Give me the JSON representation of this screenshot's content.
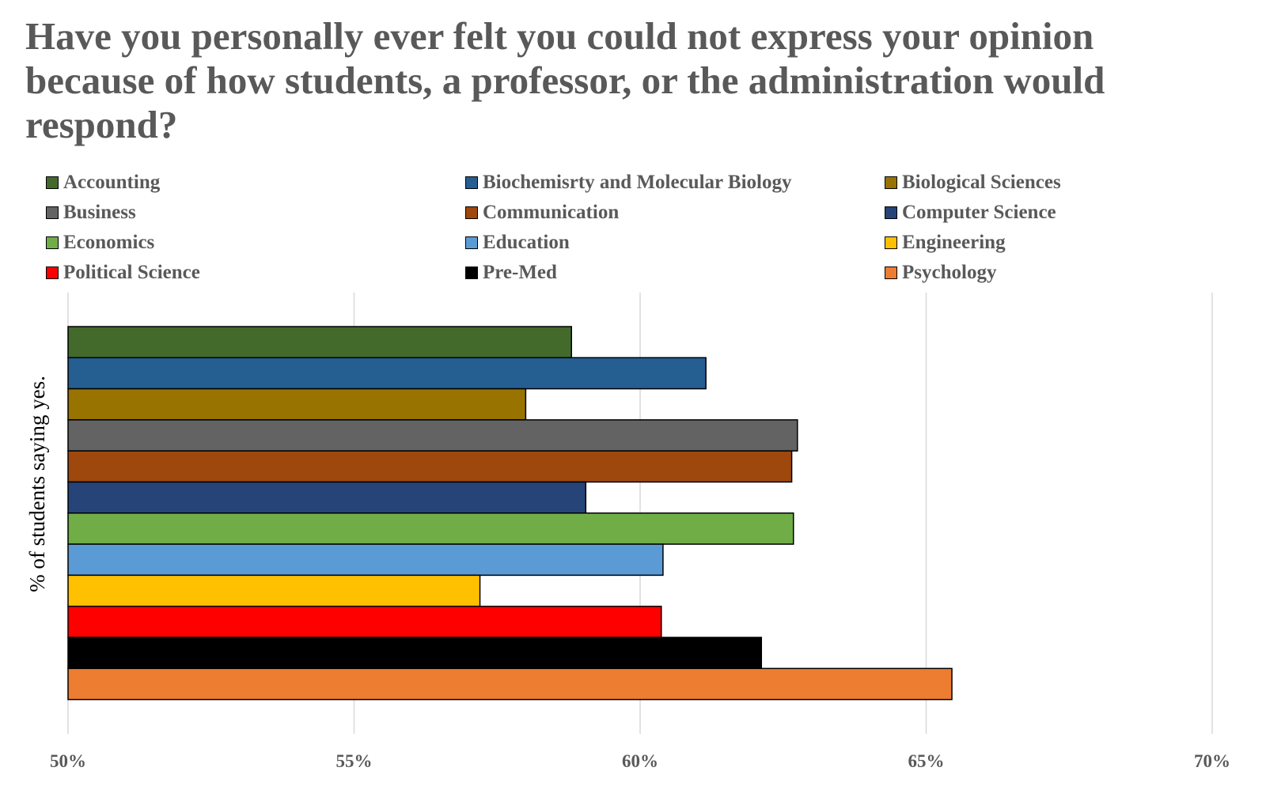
{
  "chart_data": {
    "type": "bar",
    "orientation": "horizontal",
    "title": "Have you personally ever felt you could not express your opinion because of  how students, a professor, or the administration would respond?",
    "ylabel": "% of students saying yes.",
    "xlabel": "",
    "xlim": [
      50,
      70
    ],
    "xticks": [
      "50%",
      "55%",
      "60%",
      "65%",
      "70%"
    ],
    "xtick_values": [
      50,
      55,
      60,
      65,
      70
    ],
    "grid": true,
    "legend_position": "top",
    "series": [
      {
        "name": "Accounting",
        "value": 58.8,
        "color": "#436a2b"
      },
      {
        "name": "Biochemisrty and Molecular Biology",
        "value": 61.15,
        "color": "#255e91"
      },
      {
        "name": "Biological Sciences",
        "value": 58.0,
        "color": "#987300"
      },
      {
        "name": "Business",
        "value": 62.75,
        "color": "#636363"
      },
      {
        "name": "Communication",
        "value": 62.65,
        "color": "#9e480e"
      },
      {
        "name": "Computer Science",
        "value": 59.05,
        "color": "#264478"
      },
      {
        "name": "Economics",
        "value": 62.68,
        "color": "#70ad47"
      },
      {
        "name": "Education",
        "value": 60.4,
        "color": "#5b9bd5"
      },
      {
        "name": "Engineering",
        "value": 57.2,
        "color": "#ffc000"
      },
      {
        "name": "Political Science",
        "value": 60.37,
        "color": "#ff0000"
      },
      {
        "name": "Pre-Med",
        "value": 62.12,
        "color": "#000000"
      },
      {
        "name": "Psychology",
        "value": 65.45,
        "color": "#ed7d31"
      }
    ]
  }
}
